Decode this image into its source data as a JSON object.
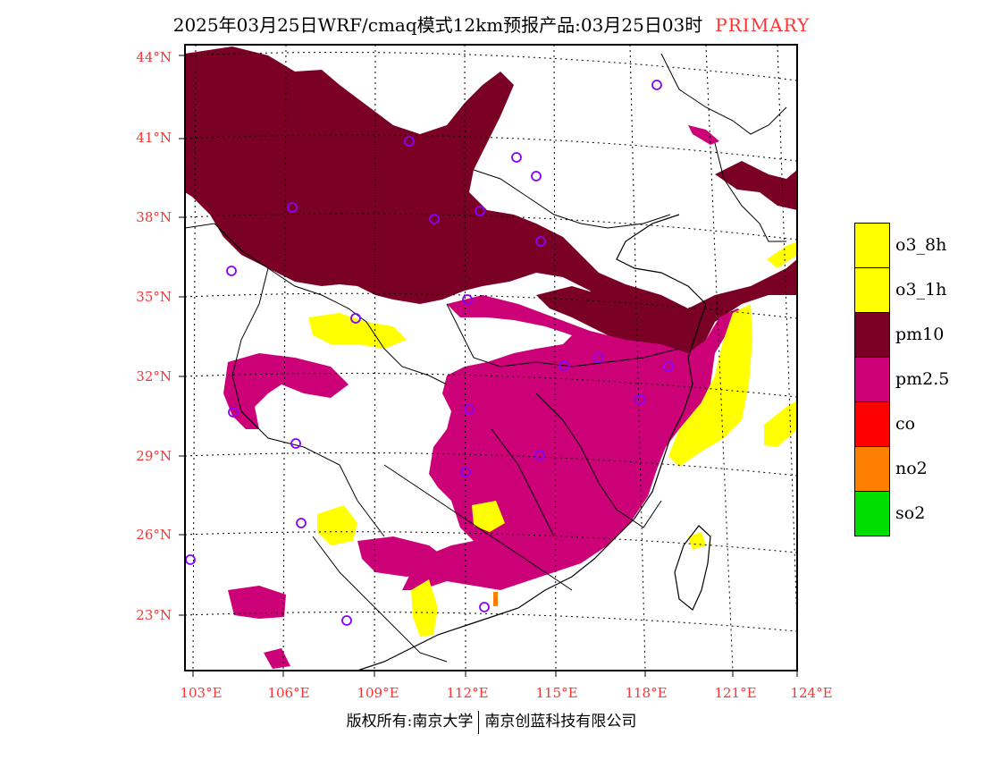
{
  "title": {
    "text": "2025年03月25日WRF/cmaq模式12km预报产品:03月25日03时",
    "tag": "PRIMARY"
  },
  "map": {
    "lat_labels": [
      "44°N",
      "41°N",
      "38°N",
      "35°N",
      "32°N",
      "29°N",
      "26°N",
      "23°N"
    ],
    "lon_labels": [
      "103°E",
      "106°E",
      "109°E",
      "112°E",
      "115°E",
      "118°E",
      "121°E",
      "124°E"
    ],
    "frame_color": "#000000",
    "label_color": "#ff3333"
  },
  "legend": [
    {
      "label": "o3_8h",
      "color": "#ffff00"
    },
    {
      "label": "o3_1h",
      "color": "#ffff00"
    },
    {
      "label": "pm10",
      "color": "#7b0026"
    },
    {
      "label": "pm2.5",
      "color": "#cc0077"
    },
    {
      "label": "co",
      "color": "#ff0000"
    },
    {
      "label": "no2",
      "color": "#ff8000"
    },
    {
      "label": "so2",
      "color": "#00dd00"
    }
  ],
  "footer": {
    "left": "版权所有:南京大学",
    "right": "南京创蓝科技有限公司"
  }
}
